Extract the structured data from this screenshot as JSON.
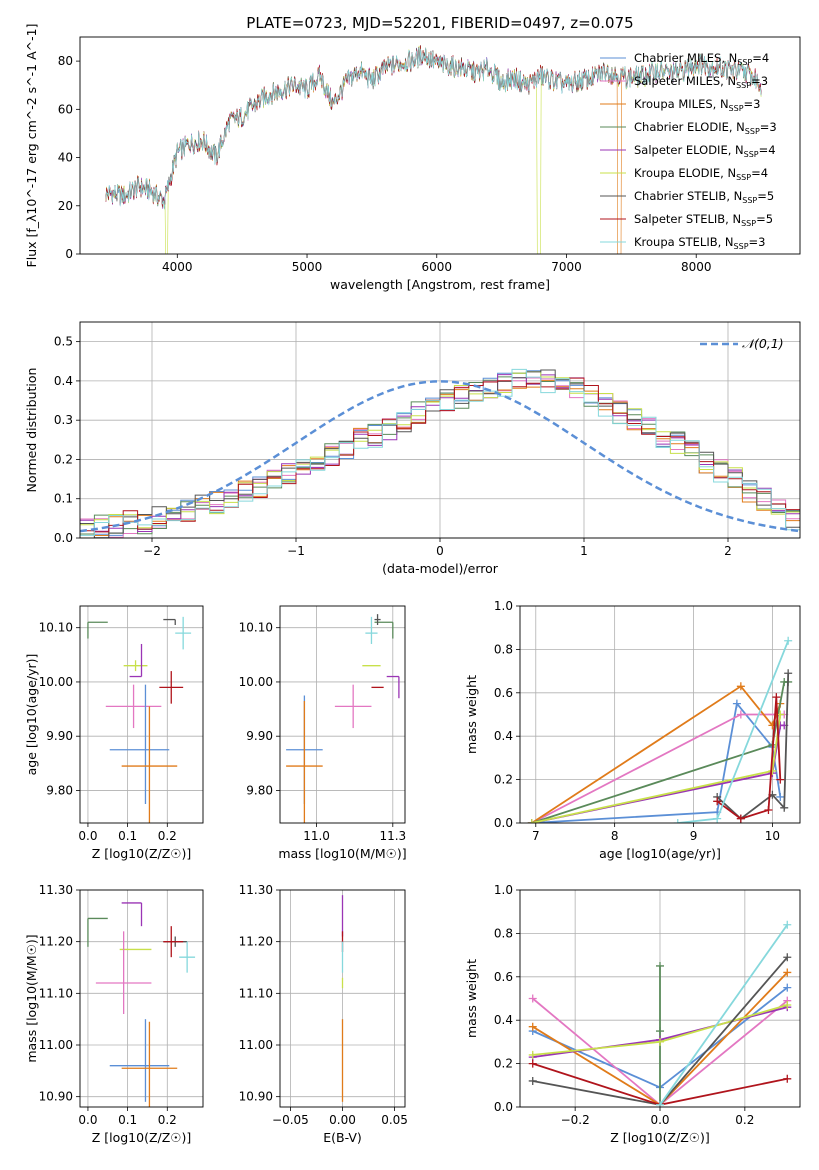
{
  "figure": {
    "title": "PLATE=0723, MJD=52201, FIBERID=0497, z=0.075"
  },
  "series_styles": [
    {
      "name": "Chabrier MILES",
      "n_ssp": 4,
      "color": "#5b8fd6"
    },
    {
      "name": "Salpeter MILES",
      "n_ssp": 3,
      "color": "#e377c2"
    },
    {
      "name": "Kroupa MILES",
      "n_ssp": 3,
      "color": "#e07b1a"
    },
    {
      "name": "Chabrier ELODIE",
      "n_ssp": 3,
      "color": "#5a8a5a"
    },
    {
      "name": "Salpeter ELODIE",
      "n_ssp": 4,
      "color": "#9a35b5"
    },
    {
      "name": "Kroupa ELODIE",
      "n_ssp": 4,
      "color": "#c8e04a"
    },
    {
      "name": "Chabrier STELIB",
      "n_ssp": 5,
      "color": "#555555"
    },
    {
      "name": "Salpeter STELIB",
      "n_ssp": 5,
      "color": "#b0141c"
    },
    {
      "name": "Kroupa STELIB",
      "n_ssp": 3,
      "color": "#86d8dc"
    }
  ],
  "chart_data": [
    {
      "id": "spectrum",
      "type": "line",
      "xlabel": "wavelength [Angstrom, rest frame]",
      "ylabel": "Flux [f_λ10^-17 erg cm^-2 s^-1 A^-1]",
      "xlim": [
        3250,
        8800
      ],
      "ylim": [
        0,
        90
      ],
      "xticks": [
        4000,
        5000,
        6000,
        7000,
        8000
      ],
      "yticks": [
        0,
        20,
        40,
        60,
        80
      ],
      "grid": false,
      "legend_position": "top-right",
      "x": [
        3500,
        3600,
        3700,
        3800,
        3900,
        4000,
        4100,
        4200,
        4300,
        4400,
        4500,
        4600,
        4700,
        4800,
        4900,
        5000,
        5100,
        5200,
        5300,
        5400,
        5500,
        5600,
        5700,
        5800,
        5900,
        6000,
        6100,
        6200,
        6300,
        6400,
        6500,
        6600,
        6700,
        6800,
        6900,
        7000,
        7100,
        7200,
        7300,
        7400,
        7500,
        7600,
        7700,
        7800,
        7900,
        8000,
        8100,
        8200,
        8300,
        8400,
        8500
      ],
      "flux": [
        25,
        24,
        28,
        26,
        22,
        42,
        46,
        47,
        40,
        55,
        57,
        62,
        66,
        68,
        70,
        68,
        74,
        62,
        71,
        76,
        72,
        77,
        79,
        80,
        83,
        79,
        78,
        77,
        75,
        77,
        71,
        73,
        70,
        74,
        72,
        70,
        72,
        73,
        76,
        74,
        73,
        74,
        76,
        75,
        76,
        79,
        78,
        77,
        76,
        75,
        70
      ],
      "gaps": [
        {
          "series": "Kroupa ELODIE",
          "x_start": 3910,
          "x_end": 3925
        },
        {
          "series": "Kroupa ELODIE",
          "x_start": 6775,
          "x_end": 6800
        },
        {
          "series": "Kroupa MILES",
          "x_start": 7395,
          "x_end": 7420
        }
      ]
    },
    {
      "id": "residual-histogram",
      "type": "histogram",
      "xlabel": "(data-model)/error",
      "ylabel": "Normed distribution",
      "xlim": [
        -2.5,
        2.5
      ],
      "ylim": [
        0,
        0.55
      ],
      "xticks": [
        -2,
        -1,
        0,
        1,
        2
      ],
      "yticks": [
        0.0,
        0.1,
        0.2,
        0.3,
        0.4,
        0.5
      ],
      "grid": true,
      "legend_position": "top-right",
      "reference_curve": {
        "name": "𝒩(0,1)",
        "mean": 0,
        "sigma": 1,
        "style": "dashed",
        "color": "#5b8fd6"
      },
      "bin_width": 0.1,
      "bin_start": -2.5,
      "bin_heights": [
        0.02,
        0.03,
        0.03,
        0.04,
        0.04,
        0.05,
        0.06,
        0.07,
        0.08,
        0.09,
        0.1,
        0.12,
        0.13,
        0.15,
        0.16,
        0.17,
        0.19,
        0.21,
        0.23,
        0.25,
        0.26,
        0.28,
        0.3,
        0.32,
        0.34,
        0.35,
        0.36,
        0.37,
        0.38,
        0.39,
        0.41,
        0.4,
        0.4,
        0.39,
        0.38,
        0.36,
        0.34,
        0.32,
        0.3,
        0.28,
        0.26,
        0.24,
        0.22,
        0.19,
        0.17,
        0.15,
        0.12,
        0.1,
        0.07,
        0.05
      ]
    },
    {
      "id": "age-vs-Z",
      "type": "scatter",
      "xlabel": "Z [log10(Z/Z☉)]",
      "ylabel": "age [log10(age/yr)]",
      "xlim": [
        -0.02,
        0.29
      ],
      "ylim": [
        9.74,
        10.14
      ],
      "xticks": [
        0.0,
        0.1,
        0.2
      ],
      "yticks": [
        9.8,
        9.9,
        10.0,
        10.1
      ],
      "grid": true,
      "points": [
        {
          "series": "Chabrier ELODIE",
          "x": 0.0,
          "y": 10.11,
          "xerr": [
            0.0,
            0.05
          ],
          "yerr": [
            0.03,
            0.0
          ]
        },
        {
          "series": "Chabrier STELIB",
          "x": 0.22,
          "y": 10.115,
          "xerr": [
            0.03,
            0.0
          ],
          "yerr": [
            0.01,
            0.0
          ]
        },
        {
          "series": "Kroupa STELIB",
          "x": 0.24,
          "y": 10.09,
          "xerr": [
            0.02,
            0.02
          ],
          "yerr": [
            0.03,
            0.03
          ]
        },
        {
          "series": "Kroupa ELODIE",
          "x": 0.12,
          "y": 10.03,
          "xerr": [
            0.03,
            0.03
          ],
          "yerr": [
            0.01,
            0.01
          ]
        },
        {
          "series": "Salpeter ELODIE",
          "x": 0.135,
          "y": 10.01,
          "xerr": [
            0.03,
            0.0
          ],
          "yerr": [
            0.0,
            0.06
          ]
        },
        {
          "series": "Salpeter STELIB",
          "x": 0.21,
          "y": 9.99,
          "xerr": [
            0.03,
            0.03
          ],
          "yerr": [
            0.03,
            0.03
          ]
        },
        {
          "series": "Salpeter MILES",
          "x": 0.115,
          "y": 9.955,
          "xerr": [
            0.07,
            0.07
          ],
          "yerr": [
            0.04,
            0.04
          ]
        },
        {
          "series": "Chabrier MILES",
          "x": 0.145,
          "y": 9.875,
          "xerr": [
            0.09,
            0.06
          ],
          "yerr": [
            0.1,
            0.12
          ]
        },
        {
          "series": "Kroupa MILES",
          "x": 0.155,
          "y": 9.845,
          "xerr": [
            0.07,
            0.07
          ],
          "yerr": [
            0.11,
            0.11
          ]
        }
      ]
    },
    {
      "id": "age-vs-mass",
      "type": "scatter",
      "xlabel": "mass [log10(M/M☉)]",
      "ylabel": "",
      "xlim": [
        10.88,
        11.29
      ],
      "ylim": [
        9.74,
        10.14
      ],
      "xticks": [
        11.0,
        11.25
      ],
      "yticks": [
        9.8,
        9.9,
        10.0,
        10.1
      ],
      "grid": true,
      "points": [
        {
          "series": "Chabrier ELODIE",
          "x": 11.25,
          "y": 10.11,
          "xerr": [
            0.06,
            0.0
          ],
          "yerr": [
            0.03,
            0.0
          ]
        },
        {
          "series": "Chabrier STELIB",
          "x": 11.2,
          "y": 10.115,
          "xerr": [
            0.01,
            0.01
          ],
          "yerr": [
            0.01,
            0.01
          ]
        },
        {
          "series": "Kroupa STELIB",
          "x": 11.18,
          "y": 10.09,
          "xerr": [
            0.02,
            0.02
          ],
          "yerr": [
            0.02,
            0.03
          ]
        },
        {
          "series": "Kroupa ELODIE",
          "x": 11.18,
          "y": 10.03,
          "xerr": [
            0.03,
            0.03
          ],
          "yerr": [
            0.0,
            0.0
          ]
        },
        {
          "series": "Salpeter ELODIE",
          "x": 11.27,
          "y": 10.01,
          "xerr": [
            0.04,
            0.0
          ],
          "yerr": [
            0.04,
            0.0
          ]
        },
        {
          "series": "Salpeter STELIB",
          "x": 11.2,
          "y": 9.99,
          "xerr": [
            0.02,
            0.02
          ],
          "yerr": [
            0.0,
            0.0
          ]
        },
        {
          "series": "Salpeter MILES",
          "x": 11.12,
          "y": 9.955,
          "xerr": [
            0.06,
            0.06
          ],
          "yerr": [
            0.04,
            0.04
          ]
        },
        {
          "series": "Chabrier MILES",
          "x": 10.96,
          "y": 9.875,
          "xerr": [
            0.06,
            0.06
          ],
          "yerr": [
            0.1,
            0.1
          ]
        },
        {
          "series": "Kroupa MILES",
          "x": 10.96,
          "y": 9.845,
          "xerr": [
            0.06,
            0.06
          ],
          "yerr": [
            0.12,
            0.12
          ]
        }
      ]
    },
    {
      "id": "mass-weight-vs-age",
      "type": "line",
      "xlabel": "age [log10(age/yr)]",
      "ylabel": "mass weight",
      "xlim": [
        6.8,
        10.35
      ],
      "ylim": [
        0,
        1
      ],
      "xticks": [
        7,
        8,
        9,
        10
      ],
      "yticks": [
        0.0,
        0.2,
        0.4,
        0.6,
        0.8,
        1.0
      ],
      "grid": true,
      "series": [
        {
          "name": "Chabrier MILES",
          "x": [
            6.95,
            9.3,
            9.55,
            10.0,
            10.1
          ],
          "y": [
            0.0,
            0.05,
            0.55,
            0.35,
            0.12
          ]
        },
        {
          "name": "Salpeter MILES",
          "x": [
            6.95,
            9.6,
            10.05,
            10.15
          ],
          "y": [
            0.0,
            0.5,
            0.5,
            0.5
          ]
        },
        {
          "name": "Kroupa MILES",
          "x": [
            6.95,
            9.6,
            10.0,
            10.1
          ],
          "y": [
            0.0,
            0.63,
            0.45,
            0.55
          ]
        },
        {
          "name": "Chabrier ELODIE",
          "x": [
            6.95,
            10.0,
            10.15,
            10.2
          ],
          "y": [
            0.0,
            0.36,
            0.65,
            0.65
          ]
        },
        {
          "name": "Salpeter ELODIE",
          "x": [
            6.95,
            10.0,
            10.1,
            10.15
          ],
          "y": [
            0.0,
            0.23,
            0.45,
            0.45
          ]
        },
        {
          "name": "Kroupa ELODIE",
          "x": [
            6.95,
            10.0,
            10.1
          ],
          "y": [
            0.0,
            0.24,
            0.5
          ]
        },
        {
          "name": "Chabrier STELIB",
          "x": [
            9.3,
            9.6,
            10.0,
            10.15,
            10.2
          ],
          "y": [
            0.12,
            0.02,
            0.13,
            0.07,
            0.69
          ]
        },
        {
          "name": "Salpeter STELIB",
          "x": [
            9.3,
            9.6,
            9.95,
            10.05,
            10.1
          ],
          "y": [
            0.1,
            0.02,
            0.06,
            0.58,
            0.2
          ]
        },
        {
          "name": "Kroupa STELIB",
          "x": [
            8.8,
            9.3,
            10.2
          ],
          "y": [
            0.0,
            0.02,
            0.84
          ]
        }
      ]
    },
    {
      "id": "mass-vs-Z",
      "type": "scatter",
      "xlabel": "Z [log10(Z/Z☉)]",
      "ylabel": "mass [log10(M/M☉)]",
      "xlim": [
        -0.02,
        0.29
      ],
      "ylim": [
        10.88,
        11.3
      ],
      "xticks": [
        0.0,
        0.1,
        0.2
      ],
      "yticks": [
        10.9,
        11.0,
        11.1,
        11.2,
        11.3
      ],
      "grid": true,
      "points": [
        {
          "series": "Chabrier ELODIE",
          "x": 0.0,
          "y": 11.245,
          "xerr": [
            0.0,
            0.05
          ],
          "yerr": [
            0.055,
            0.0
          ]
        },
        {
          "series": "Salpeter ELODIE",
          "x": 0.135,
          "y": 11.275,
          "xerr": [
            0.05,
            0.0
          ],
          "yerr": [
            0.045,
            0.0
          ]
        },
        {
          "series": "Chabrier STELIB",
          "x": 0.22,
          "y": 11.2,
          "xerr": [
            0.03,
            0.03
          ],
          "yerr": [
            0.01,
            0.01
          ]
        },
        {
          "series": "Salpeter STELIB",
          "x": 0.21,
          "y": 11.2,
          "xerr": [
            0.02,
            0.03
          ],
          "yerr": [
            0.03,
            0.03
          ]
        },
        {
          "series": "Kroupa STELIB",
          "x": 0.25,
          "y": 11.17,
          "xerr": [
            0.02,
            0.02
          ],
          "yerr": [
            0.03,
            0.03
          ]
        },
        {
          "series": "Kroupa ELODIE",
          "x": 0.12,
          "y": 11.185,
          "xerr": [
            0.04,
            0.04
          ],
          "yerr": [
            0.0,
            0.0
          ]
        },
        {
          "series": "Salpeter MILES",
          "x": 0.09,
          "y": 11.12,
          "xerr": [
            0.07,
            0.07
          ],
          "yerr": [
            0.06,
            0.1
          ]
        },
        {
          "series": "Chabrier MILES",
          "x": 0.145,
          "y": 10.96,
          "xerr": [
            0.09,
            0.06
          ],
          "yerr": [
            0.07,
            0.09
          ]
        },
        {
          "series": "Kroupa MILES",
          "x": 0.155,
          "y": 10.955,
          "xerr": [
            0.07,
            0.07
          ],
          "yerr": [
            0.09,
            0.09
          ]
        }
      ]
    },
    {
      "id": "mass-vs-EBV",
      "type": "scatter",
      "xlabel": "E(B-V)",
      "ylabel": "",
      "xlim": [
        -0.06,
        0.06
      ],
      "ylim": [
        10.88,
        11.3
      ],
      "xticks": [
        -0.05,
        0.0,
        0.05
      ],
      "yticks": [
        10.9,
        11.0,
        11.1,
        11.2,
        11.3
      ],
      "grid": true,
      "points": [
        {
          "series": "Salpeter ELODIE",
          "x": 0.0,
          "y": 11.25,
          "xerr": [
            0,
            0
          ],
          "yerr": [
            0.04,
            0.04
          ]
        },
        {
          "series": "Salpeter STELIB",
          "x": 0.0,
          "y": 11.2,
          "xerr": [
            0,
            0
          ],
          "yerr": [
            0.02,
            0.02
          ]
        },
        {
          "series": "Kroupa STELIB",
          "x": 0.0,
          "y": 11.17,
          "xerr": [
            0,
            0
          ],
          "yerr": [
            0.03,
            0.03
          ]
        },
        {
          "series": "Kroupa ELODIE",
          "x": 0.0,
          "y": 11.12,
          "xerr": [
            0,
            0
          ],
          "yerr": [
            0.01,
            0.01
          ]
        },
        {
          "series": "Kroupa MILES",
          "x": 0.0,
          "y": 10.97,
          "xerr": [
            0,
            0
          ],
          "yerr": [
            0.08,
            0.08
          ]
        }
      ]
    },
    {
      "id": "mass-weight-vs-Z",
      "type": "line",
      "xlabel": "Z [log10(Z/Z☉)]",
      "ylabel": "mass weight",
      "xlim": [
        -0.33,
        0.33
      ],
      "ylim": [
        0,
        1
      ],
      "xticks": [
        -0.2,
        0.0,
        0.2
      ],
      "yticks": [
        0.0,
        0.2,
        0.4,
        0.6,
        0.8,
        1.0
      ],
      "grid": true,
      "series": [
        {
          "name": "Chabrier MILES",
          "x": [
            -0.3,
            0.0,
            0.3
          ],
          "y": [
            0.35,
            0.09,
            0.55
          ]
        },
        {
          "name": "Salpeter MILES",
          "x": [
            -0.3,
            0.0,
            0.3
          ],
          "y": [
            0.5,
            0.01,
            0.49
          ]
        },
        {
          "name": "Kroupa MILES",
          "x": [
            -0.3,
            0.0,
            0.3
          ],
          "y": [
            0.37,
            0.01,
            0.62
          ]
        },
        {
          "name": "Chabrier ELODIE",
          "x": [
            0.0,
            0.0,
            0.0
          ],
          "y": [
            0.65,
            0.35,
            0.01
          ]
        },
        {
          "name": "Salpeter ELODIE",
          "x": [
            -0.3,
            0.0,
            0.3
          ],
          "y": [
            0.23,
            0.31,
            0.46
          ]
        },
        {
          "name": "Kroupa ELODIE",
          "x": [
            -0.3,
            0.0,
            0.3
          ],
          "y": [
            0.24,
            0.3,
            0.47
          ]
        },
        {
          "name": "Chabrier STELIB",
          "x": [
            -0.3,
            0.0,
            0.3
          ],
          "y": [
            0.12,
            0.01,
            0.69
          ]
        },
        {
          "name": "Salpeter STELIB",
          "x": [
            -0.3,
            0.0,
            0.3
          ],
          "y": [
            0.2,
            0.01,
            0.13
          ]
        },
        {
          "name": "Kroupa STELIB",
          "x": [
            0.0,
            0.3
          ],
          "y": [
            0.01,
            0.84
          ]
        }
      ]
    }
  ]
}
